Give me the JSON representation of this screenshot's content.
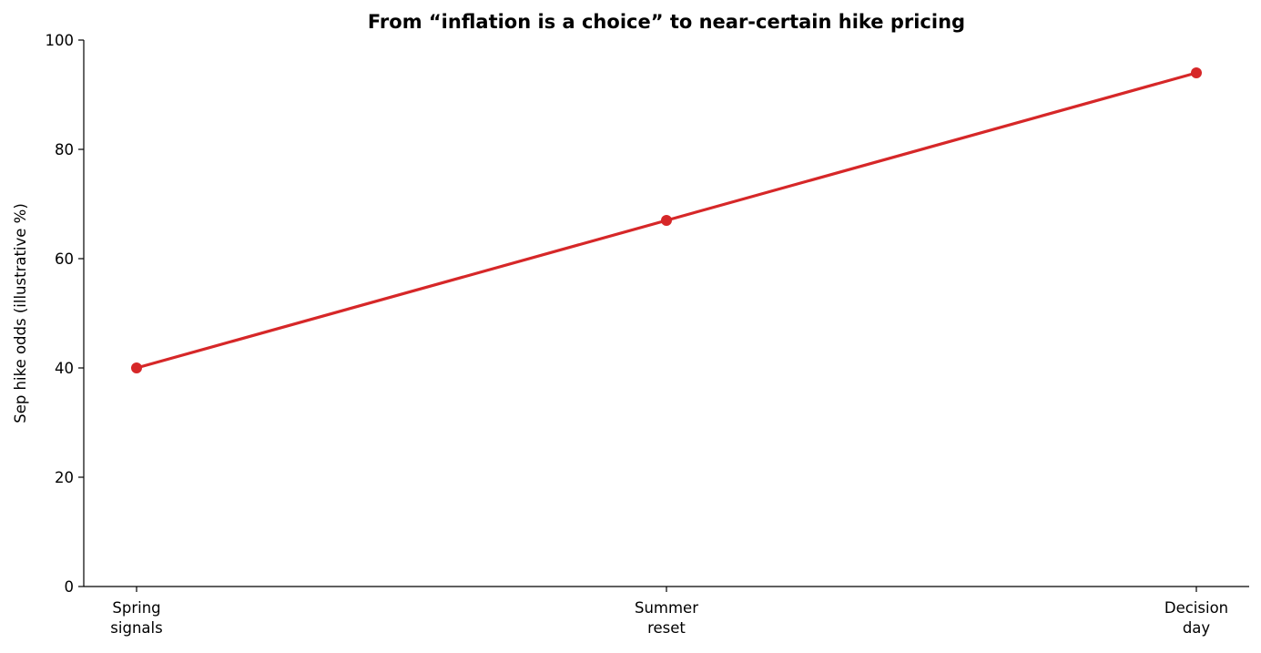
{
  "chart_data": {
    "type": "line",
    "title": "From “inflation is a choice” to near-certain hike pricing",
    "xlabel": "",
    "ylabel": "Sep hike odds (illustrative %)",
    "categories": [
      [
        "Spring",
        "signals"
      ],
      [
        "Summer",
        "reset"
      ],
      [
        "Decision",
        "day"
      ]
    ],
    "series": [
      {
        "values": [
          40,
          67,
          94
        ],
        "color": "#d62728"
      }
    ],
    "ylim": [
      0,
      100
    ],
    "yticks": [
      0,
      20,
      40,
      60,
      80,
      100
    ],
    "grid": false,
    "legend": "none"
  }
}
